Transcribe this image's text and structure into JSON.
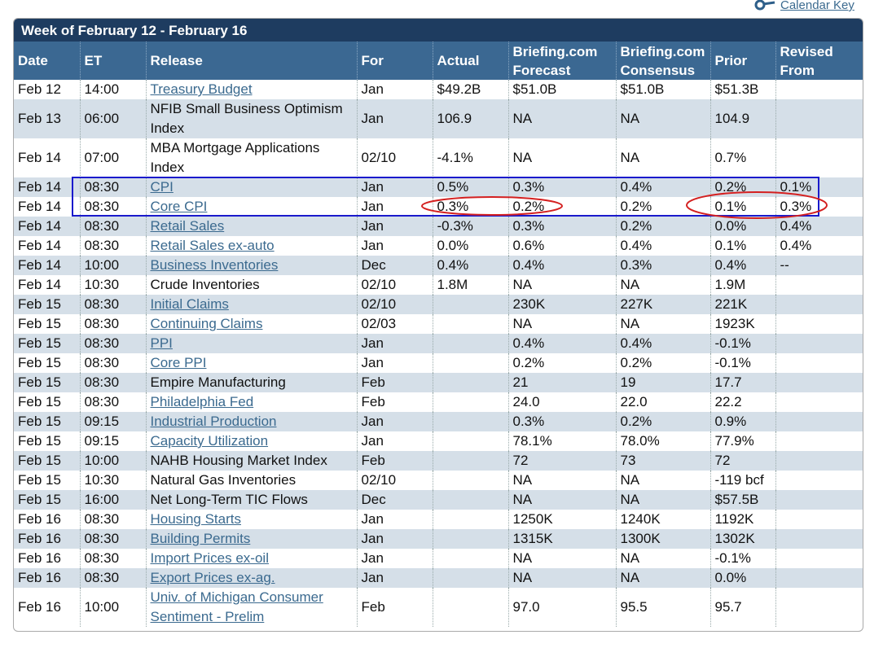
{
  "calendar_key": "Calendar Key",
  "table": {
    "title": "Week of February 12 - February 16",
    "columns": [
      "Date",
      "ET",
      "Release",
      "For",
      "Actual",
      "Briefing.com Forecast",
      "Briefing.com Consensus",
      "Prior",
      "Revised From"
    ],
    "rows": [
      {
        "cells": [
          "Feb 12",
          "14:00",
          "Treasury Budget",
          "Jan",
          "$49.2B",
          "$51.0B",
          "$51.0B",
          "$51.3B",
          null
        ],
        "link": true
      },
      {
        "cells": [
          "Feb 13",
          "06:00",
          "NFIB Small Business Optimism Index",
          "Jan",
          "106.9",
          "NA",
          "NA",
          "104.9",
          null
        ],
        "link": false
      },
      {
        "cells": [
          "Feb 14",
          "07:00",
          "MBA Mortgage Applications Index",
          "02/10",
          "-4.1%",
          "NA",
          "NA",
          "0.7%",
          null
        ],
        "link": false
      },
      {
        "cells": [
          "Feb 14",
          "08:30",
          "CPI",
          "Jan",
          "0.5%",
          "0.3%",
          "0.4%",
          "0.2%",
          "0.1%"
        ],
        "link": true
      },
      {
        "cells": [
          "Feb 14",
          "08:30",
          "Core CPI",
          "Jan",
          "0.3%",
          "0.2%",
          "0.2%",
          "0.1%",
          "0.3%"
        ],
        "link": true
      },
      {
        "cells": [
          "Feb 14",
          "08:30",
          "Retail Sales",
          "Jan",
          "-0.3%",
          "0.3%",
          "0.2%",
          "0.0%",
          "0.4%"
        ],
        "link": true
      },
      {
        "cells": [
          "Feb 14",
          "08:30",
          "Retail Sales ex-auto",
          "Jan",
          "0.0%",
          "0.6%",
          "0.4%",
          "0.1%",
          "0.4%"
        ],
        "link": true
      },
      {
        "cells": [
          "Feb 14",
          "10:00",
          "Business Inventories",
          "Dec",
          "0.4%",
          "0.4%",
          "0.3%",
          "0.4%",
          "--"
        ],
        "link": true
      },
      {
        "cells": [
          "Feb 14",
          "10:30",
          "Crude Inventories",
          "02/10",
          "1.8M",
          "NA",
          "NA",
          "1.9M",
          null
        ],
        "link": false
      },
      {
        "cells": [
          "Feb 15",
          "08:30",
          "Initial Claims",
          "02/10",
          null,
          "230K",
          "227K",
          "221K",
          null
        ],
        "link": true
      },
      {
        "cells": [
          "Feb 15",
          "08:30",
          "Continuing Claims",
          "02/03",
          null,
          "NA",
          "NA",
          "1923K",
          null
        ],
        "link": true
      },
      {
        "cells": [
          "Feb 15",
          "08:30",
          "PPI",
          "Jan",
          null,
          "0.4%",
          "0.4%",
          "-0.1%",
          null
        ],
        "link": true
      },
      {
        "cells": [
          "Feb 15",
          "08:30",
          "Core PPI",
          "Jan",
          null,
          "0.2%",
          "0.2%",
          "-0.1%",
          null
        ],
        "link": true
      },
      {
        "cells": [
          "Feb 15",
          "08:30",
          "Empire Manufacturing",
          "Feb",
          null,
          "21",
          "19",
          "17.7",
          null
        ],
        "link": false
      },
      {
        "cells": [
          "Feb 15",
          "08:30",
          "Philadelphia Fed",
          "Feb",
          null,
          "24.0",
          "22.0",
          "22.2",
          null
        ],
        "link": true
      },
      {
        "cells": [
          "Feb 15",
          "09:15",
          "Industrial Production",
          "Jan",
          null,
          "0.3%",
          "0.2%",
          "0.9%",
          null
        ],
        "link": true
      },
      {
        "cells": [
          "Feb 15",
          "09:15",
          "Capacity Utilization",
          "Jan",
          null,
          "78.1%",
          "78.0%",
          "77.9%",
          null
        ],
        "link": true
      },
      {
        "cells": [
          "Feb 15",
          "10:00",
          "NAHB Housing Market Index",
          "Feb",
          null,
          "72",
          "73",
          "72",
          null
        ],
        "link": false
      },
      {
        "cells": [
          "Feb 15",
          "10:30",
          "Natural Gas Inventories",
          "02/10",
          null,
          "NA",
          "NA",
          "-119 bcf",
          null
        ],
        "link": false
      },
      {
        "cells": [
          "Feb 15",
          "16:00",
          "Net Long-Term TIC Flows",
          "Dec",
          null,
          "NA",
          "NA",
          "$57.5B",
          null
        ],
        "link": false
      },
      {
        "cells": [
          "Feb 16",
          "08:30",
          "Housing Starts",
          "Jan",
          null,
          "1250K",
          "1240K",
          "1192K",
          null
        ],
        "link": true
      },
      {
        "cells": [
          "Feb 16",
          "08:30",
          "Building Permits",
          "Jan",
          null,
          "1315K",
          "1300K",
          "1302K",
          null
        ],
        "link": true
      },
      {
        "cells": [
          "Feb 16",
          "08:30",
          "Import Prices ex-oil",
          "Jan",
          null,
          "NA",
          "NA",
          "-0.1%",
          null
        ],
        "link": true
      },
      {
        "cells": [
          "Feb 16",
          "08:30",
          "Export Prices ex-ag.",
          "Jan",
          null,
          "NA",
          "NA",
          "0.0%",
          null
        ],
        "link": true
      },
      {
        "cells": [
          "Feb 16",
          "10:00",
          "Univ. of Michigan Consumer Sentiment - Prelim",
          "Feb",
          null,
          "97.0",
          "95.5",
          "95.7",
          null
        ],
        "link": true
      }
    ]
  }
}
